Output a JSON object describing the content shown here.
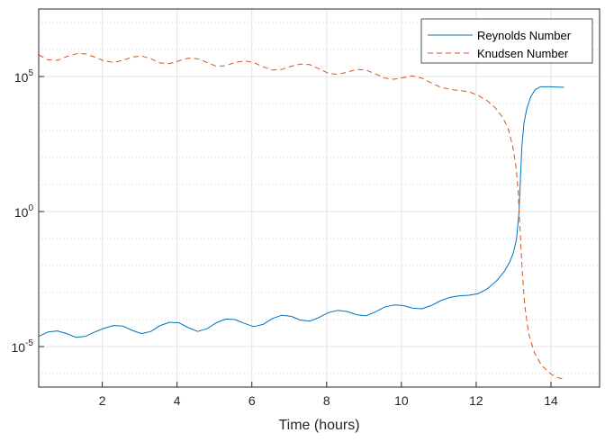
{
  "chart_data": {
    "type": "line",
    "title": "",
    "xlabel": "Time (hours)",
    "ylabel": "",
    "xlim": [
      0.3,
      15.3
    ],
    "xticks": [
      2,
      4,
      6,
      8,
      10,
      12,
      14
    ],
    "yscale": "log",
    "ylim_exp": [
      -6.5,
      7.5
    ],
    "yticks_exp": [
      -5,
      0,
      5
    ],
    "ytick_labels": [
      {
        "base": "10",
        "exp": "-5"
      },
      {
        "base": "10",
        "exp": "0"
      },
      {
        "base": "10",
        "exp": "5"
      }
    ],
    "grid": true,
    "minor_grid": true,
    "legend_position": "top-right",
    "series": [
      {
        "name": "Reynolds Number",
        "color": "#0072BD",
        "style": "solid",
        "log10_values": [
          [
            0.3,
            -4.62
          ],
          [
            0.55,
            -4.46
          ],
          [
            0.8,
            -4.42
          ],
          [
            1.05,
            -4.52
          ],
          [
            1.3,
            -4.66
          ],
          [
            1.55,
            -4.62
          ],
          [
            1.8,
            -4.46
          ],
          [
            2.05,
            -4.32
          ],
          [
            2.3,
            -4.22
          ],
          [
            2.55,
            -4.24
          ],
          [
            2.8,
            -4.4
          ],
          [
            3.05,
            -4.52
          ],
          [
            3.3,
            -4.44
          ],
          [
            3.55,
            -4.22
          ],
          [
            3.8,
            -4.1
          ],
          [
            4.05,
            -4.12
          ],
          [
            4.3,
            -4.3
          ],
          [
            4.55,
            -4.44
          ],
          [
            4.8,
            -4.34
          ],
          [
            5.05,
            -4.12
          ],
          [
            5.3,
            -3.98
          ],
          [
            5.55,
            -4.0
          ],
          [
            5.8,
            -4.14
          ],
          [
            6.05,
            -4.26
          ],
          [
            6.3,
            -4.18
          ],
          [
            6.55,
            -3.96
          ],
          [
            6.8,
            -3.84
          ],
          [
            7.05,
            -3.88
          ],
          [
            7.3,
            -4.02
          ],
          [
            7.55,
            -4.06
          ],
          [
            7.8,
            -3.92
          ],
          [
            8.05,
            -3.74
          ],
          [
            8.3,
            -3.66
          ],
          [
            8.55,
            -3.7
          ],
          [
            8.8,
            -3.82
          ],
          [
            9.05,
            -3.86
          ],
          [
            9.3,
            -3.72
          ],
          [
            9.55,
            -3.54
          ],
          [
            9.8,
            -3.46
          ],
          [
            10.05,
            -3.48
          ],
          [
            10.3,
            -3.58
          ],
          [
            10.55,
            -3.6
          ],
          [
            10.8,
            -3.48
          ],
          [
            11.05,
            -3.3
          ],
          [
            11.3,
            -3.18
          ],
          [
            11.55,
            -3.12
          ],
          [
            11.8,
            -3.1
          ],
          [
            12.05,
            -3.04
          ],
          [
            12.3,
            -2.86
          ],
          [
            12.55,
            -2.56
          ],
          [
            12.75,
            -2.22
          ],
          [
            12.9,
            -1.86
          ],
          [
            13.0,
            -1.5
          ],
          [
            13.08,
            -1.0
          ],
          [
            13.14,
            -0.1
          ],
          [
            13.18,
            1.1
          ],
          [
            13.22,
            2.4
          ],
          [
            13.28,
            3.3
          ],
          [
            13.36,
            3.85
          ],
          [
            13.46,
            4.25
          ],
          [
            13.58,
            4.52
          ],
          [
            13.72,
            4.62
          ],
          [
            13.95,
            4.62
          ],
          [
            14.35,
            4.6
          ]
        ]
      },
      {
        "name": "Knudsen Number",
        "color": "#D95319",
        "style": "dashed",
        "log10_values": [
          [
            0.3,
            5.8
          ],
          [
            0.55,
            5.62
          ],
          [
            0.8,
            5.6
          ],
          [
            1.05,
            5.74
          ],
          [
            1.3,
            5.84
          ],
          [
            1.55,
            5.84
          ],
          [
            1.8,
            5.72
          ],
          [
            2.05,
            5.58
          ],
          [
            2.3,
            5.52
          ],
          [
            2.55,
            5.6
          ],
          [
            2.8,
            5.72
          ],
          [
            3.05,
            5.76
          ],
          [
            3.3,
            5.66
          ],
          [
            3.55,
            5.5
          ],
          [
            3.8,
            5.48
          ],
          [
            4.05,
            5.58
          ],
          [
            4.3,
            5.68
          ],
          [
            4.55,
            5.66
          ],
          [
            4.8,
            5.52
          ],
          [
            5.05,
            5.38
          ],
          [
            5.3,
            5.4
          ],
          [
            5.55,
            5.52
          ],
          [
            5.8,
            5.58
          ],
          [
            6.05,
            5.52
          ],
          [
            6.3,
            5.36
          ],
          [
            6.55,
            5.24
          ],
          [
            6.8,
            5.26
          ],
          [
            7.05,
            5.38
          ],
          [
            7.3,
            5.46
          ],
          [
            7.55,
            5.44
          ],
          [
            7.8,
            5.28
          ],
          [
            8.05,
            5.12
          ],
          [
            8.3,
            5.08
          ],
          [
            8.55,
            5.16
          ],
          [
            8.8,
            5.26
          ],
          [
            9.05,
            5.24
          ],
          [
            9.3,
            5.1
          ],
          [
            9.55,
            4.94
          ],
          [
            9.8,
            4.9
          ],
          [
            10.05,
            4.96
          ],
          [
            10.3,
            5.02
          ],
          [
            10.55,
            4.94
          ],
          [
            10.8,
            4.76
          ],
          [
            11.05,
            4.6
          ],
          [
            11.3,
            4.52
          ],
          [
            11.55,
            4.48
          ],
          [
            11.8,
            4.44
          ],
          [
            12.05,
            4.3
          ],
          [
            12.3,
            4.1
          ],
          [
            12.5,
            3.86
          ],
          [
            12.7,
            3.5
          ],
          [
            12.85,
            3.1
          ],
          [
            12.98,
            2.4
          ],
          [
            13.06,
            1.7
          ],
          [
            13.12,
            0.8
          ],
          [
            13.16,
            -0.3
          ],
          [
            13.2,
            -1.4
          ],
          [
            13.24,
            -2.4
          ],
          [
            13.3,
            -3.5
          ],
          [
            13.4,
            -4.5
          ],
          [
            13.55,
            -5.2
          ],
          [
            13.75,
            -5.7
          ],
          [
            14.0,
            -6.02
          ],
          [
            14.2,
            -6.16
          ],
          [
            14.35,
            -6.2
          ]
        ]
      }
    ]
  }
}
